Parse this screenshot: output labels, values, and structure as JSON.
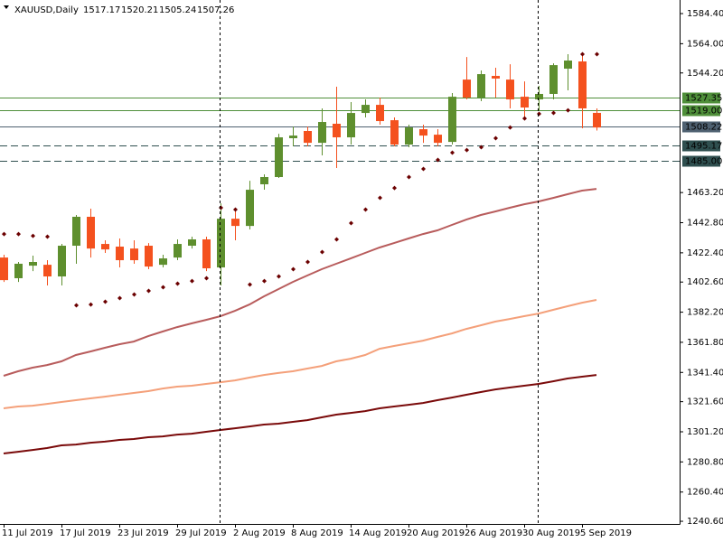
{
  "chart_data": {
    "type": "candlestick",
    "symbol": "XAUUSD,Daily",
    "header_values": [
      1517.17,
      1520.21,
      1505.24,
      1507.26
    ],
    "categories": [
      "11 Jul 2019",
      null,
      null,
      null,
      "17 Jul 2019",
      null,
      null,
      null,
      "23 Jul 2019",
      null,
      null,
      null,
      "29 Jul 2019",
      null,
      null,
      null,
      "2 Aug 2019",
      null,
      null,
      null,
      "8 Aug 2019",
      null,
      null,
      null,
      "14 Aug 2019",
      null,
      null,
      null,
      "20 Aug 2019",
      null,
      null,
      null,
      "26 Aug 2019",
      null,
      null,
      null,
      "30 Aug 2019",
      null,
      null,
      null,
      "5 Sep 2019",
      null
    ],
    "open": [
      1419.2,
      1405.2,
      1413.7,
      1414.3,
      1406.4,
      1427.2,
      1446.8,
      1428.4,
      1426.6,
      1425.3,
      1427.2,
      1414.3,
      1419.2,
      1427.2,
      1431.5,
      1412.5,
      1445.5,
      1440.6,
      1468.8,
      1473.7,
      1500.0,
      1504.9,
      1496.9,
      1509.8,
      1500.6,
      1517.1,
      1522.6,
      1512.2,
      1495.7,
      1506.1,
      1502.4,
      1497.5,
      1539.7,
      1527.5,
      1542.2,
      1539.7,
      1528.1,
      1526.3,
      1530.0,
      1547.1,
      1552.0,
      1517.17
    ],
    "high": [
      1421.1,
      1416.2,
      1420.5,
      1417.4,
      1428.4,
      1448.0,
      1452.3,
      1430.9,
      1432.1,
      1430.9,
      1429.0,
      1421.1,
      1431.5,
      1433.3,
      1433.3,
      1455.9,
      1452.9,
      1471.2,
      1475.5,
      1503.0,
      1507.9,
      1507.9,
      1520.2,
      1534.9,
      1524.5,
      1526.3,
      1527.5,
      1514.1,
      1509.2,
      1509.2,
      1506.1,
      1530.6,
      1555.0,
      1545.9,
      1547.7,
      1550.1,
      1538.5,
      1535.5,
      1550.7,
      1556.9,
      1556.9,
      1520.21
    ],
    "low": [
      1402.7,
      1402.7,
      1410.0,
      1400.3,
      1400.3,
      1415.0,
      1419.2,
      1422.3,
      1412.5,
      1415.0,
      1411.3,
      1412.5,
      1417.4,
      1425.3,
      1410.0,
      1400.3,
      1430.9,
      1438.2,
      1465.1,
      1473.1,
      1494.5,
      1494.5,
      1488.4,
      1479.8,
      1495.7,
      1514.1,
      1509.2,
      1494.5,
      1493.9,
      1496.9,
      1494.5,
      1495.7,
      1526.3,
      1525.1,
      1527.5,
      1520.2,
      1514.1,
      1519.0,
      1526.3,
      1532.4,
      1506.7,
      1505.24
    ],
    "close": [
      1403.9,
      1415.0,
      1416.2,
      1406.4,
      1427.2,
      1446.8,
      1425.3,
      1424.7,
      1417.4,
      1417.4,
      1413.1,
      1418.6,
      1428.4,
      1431.5,
      1411.9,
      1445.5,
      1440.6,
      1465.1,
      1473.7,
      1500.6,
      1501.8,
      1496.9,
      1511.0,
      1500.6,
      1517.1,
      1522.6,
      1511.6,
      1495.7,
      1507.3,
      1501.8,
      1496.9,
      1528.1,
      1527.5,
      1543.4,
      1540.4,
      1526.3,
      1520.8,
      1530.0,
      1549.5,
      1552.6,
      1520.2,
      1507.26
    ],
    "up_color": "#5e8f2e",
    "down_color": "#f4511e",
    "ma": [
      {
        "color": "#b85c5c",
        "values": [
          1339.1,
          1342.2,
          1344.6,
          1346.4,
          1348.9,
          1353.2,
          1355.6,
          1358.1,
          1360.5,
          1362.3,
          1366.0,
          1369.1,
          1372.1,
          1374.6,
          1377.0,
          1379.5,
          1383.1,
          1387.4,
          1392.9,
          1397.8,
          1402.7,
          1407.0,
          1411.3,
          1415.0,
          1418.6,
          1422.3,
          1426.0,
          1429.0,
          1432.1,
          1435.1,
          1437.6,
          1441.3,
          1444.9,
          1448.0,
          1450.4,
          1452.9,
          1455.3,
          1457.2,
          1459.6,
          1462.1,
          1464.5,
          1465.7
        ]
      },
      {
        "color": "#f4a07a",
        "values": [
          1317.1,
          1318.3,
          1318.9,
          1320.1,
          1321.4,
          1322.6,
          1323.8,
          1325.0,
          1326.3,
          1327.5,
          1328.7,
          1330.5,
          1331.8,
          1332.4,
          1333.6,
          1334.8,
          1336.0,
          1337.9,
          1339.7,
          1341.0,
          1342.2,
          1344.0,
          1345.8,
          1348.9,
          1350.7,
          1353.2,
          1357.4,
          1359.3,
          1361.1,
          1362.9,
          1365.4,
          1367.8,
          1370.9,
          1373.3,
          1375.8,
          1377.6,
          1379.5,
          1381.3,
          1383.8,
          1386.2,
          1388.6,
          1390.5
        ]
      },
      {
        "color": "#7a0a0a",
        "values": [
          1286.5,
          1287.7,
          1288.9,
          1290.2,
          1292.0,
          1292.6,
          1293.8,
          1294.5,
          1295.7,
          1296.3,
          1297.5,
          1298.1,
          1299.3,
          1299.9,
          1301.2,
          1302.4,
          1303.6,
          1304.8,
          1306.1,
          1306.7,
          1307.9,
          1309.1,
          1311.0,
          1312.8,
          1314.0,
          1315.2,
          1317.1,
          1318.3,
          1319.5,
          1320.7,
          1322.6,
          1324.4,
          1326.3,
          1328.1,
          1329.9,
          1331.2,
          1332.4,
          1333.6,
          1335.4,
          1337.3,
          1338.5,
          1339.7
        ]
      }
    ],
    "sar": {
      "color": "#6b0000",
      "values": [
        1435.1,
        1435.1,
        1433.9,
        1433.3,
        null,
        1386.8,
        1387.4,
        1389.3,
        1391.7,
        1394.2,
        1396.6,
        1399.1,
        1401.5,
        1403.3,
        1405.2,
        1452.9,
        1451.7,
        1400.9,
        1403.3,
        1406.4,
        1411.3,
        1416.2,
        1422.9,
        1431.5,
        1442.5,
        1451.7,
        1459.6,
        1466.3,
        1473.7,
        1479.2,
        1485.3,
        1490.2,
        1492.0,
        1493.9,
        1500.0,
        1507.3,
        1513.4,
        1516.5,
        1517.1,
        1518.9,
        1556.9,
        1556.9
      ]
    },
    "hlines": [
      {
        "value": 1527.35,
        "color": "#4f8f3a",
        "style": "solid"
      },
      {
        "value": 1519,
        "label": "1519.00",
        "color": "#4f8f3a",
        "style": "solid"
      },
      {
        "value": 1508.22,
        "color": "#4e6070",
        "style": "solid"
      },
      {
        "value": 1495.17,
        "color": "#2f4f4f",
        "style": "dashed"
      },
      {
        "value": 1485,
        "label": "1485.00",
        "color": "#2f4f4f",
        "style": "dashed"
      }
    ],
    "ylim": [
      1238.8,
      1593.6
    ],
    "yticks": [
      {
        "value": 1584.4,
        "label": "1584.40"
      },
      {
        "value": 1564,
        "label": "1564.00"
      },
      {
        "value": 1544.2,
        "label": "1544.20"
      },
      {
        "value": 1463.2,
        "label": "1463.20"
      },
      {
        "value": 1442.8,
        "label": "1442.80"
      },
      {
        "value": 1422.4,
        "label": "1422.40"
      },
      {
        "value": 1402.6,
        "label": "1402.60"
      },
      {
        "value": 1382.2,
        "label": "1382.20"
      },
      {
        "value": 1361.8,
        "label": "1361.80"
      },
      {
        "value": 1341.4,
        "label": "1341.40"
      },
      {
        "value": 1321.6,
        "label": "1321.60"
      },
      {
        "value": 1301.2,
        "label": "1301.20"
      },
      {
        "value": 1280.8,
        "label": "1280.80"
      },
      {
        "value": 1260.4,
        "label": "1260.40"
      },
      {
        "value": 1240.6,
        "label": "1240.60"
      }
    ]
  }
}
